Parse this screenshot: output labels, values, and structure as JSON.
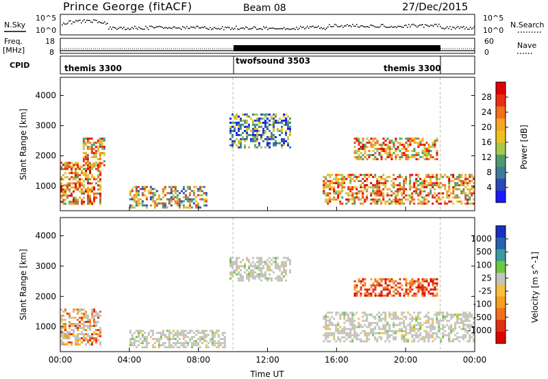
{
  "header": {
    "station": "Prince George (fitACF)",
    "beam": "Beam 08",
    "date": "27/Dec/2015"
  },
  "noise_panel": {
    "left_label": "N.Sky",
    "right_label": "N.Search",
    "left_ticks": [
      "10^5",
      "10^0"
    ],
    "right_ticks": [
      "10^5",
      "10^0"
    ],
    "right_legend_line": "dotted"
  },
  "freq_panel": {
    "label_line1": "Freq.",
    "label_line2": "[MHz]",
    "left_ticks": [
      "18",
      "8"
    ],
    "right_label": "Nave",
    "right_ticks": [
      "60",
      "0"
    ]
  },
  "cpid_panel": {
    "label": "CPID",
    "segments": [
      {
        "name": "themis 3300",
        "start_hour": 0,
        "end_hour": 10
      },
      {
        "name": "twofsound 3503",
        "start_hour": 10,
        "end_hour": 22
      },
      {
        "name": "themis 3300",
        "start_hour": 22,
        "end_hour": 24
      }
    ]
  },
  "chart_data": [
    {
      "type": "heatmap",
      "quantity": "power",
      "ylabel": "Slant Range [km]",
      "ylim": [
        180,
        4600
      ],
      "y_ticks": [
        1000,
        2000,
        3000,
        4000
      ],
      "colorbar": {
        "label": "Power [dB]",
        "ticks": [
          "4",
          "8",
          "12",
          "16",
          "20",
          "24",
          "28"
        ],
        "colors": [
          "#1a1aff",
          "#2a48b8",
          "#3f7a96",
          "#4f9a6e",
          "#a8c84a",
          "#f0c020",
          "#f5a623",
          "#f07018",
          "#e83010",
          "#e00000"
        ]
      },
      "echo_regions": [
        {
          "start_hour": 0.0,
          "end_hour": 2.3,
          "range_km": [
            400,
            1800
          ],
          "level": "strong"
        },
        {
          "start_hour": 1.3,
          "end_hour": 2.5,
          "range_km": [
            1700,
            2600
          ],
          "level": "strong"
        },
        {
          "start_hour": 4.0,
          "end_hour": 8.5,
          "range_km": [
            300,
            1000
          ],
          "level": "medium"
        },
        {
          "start_hour": 9.8,
          "end_hour": 13.3,
          "range_km": [
            2300,
            3400
          ],
          "level": "weak"
        },
        {
          "start_hour": 15.2,
          "end_hour": 24.0,
          "range_km": [
            400,
            1400
          ],
          "level": "strong"
        },
        {
          "start_hour": 17.0,
          "end_hour": 21.8,
          "range_km": [
            1900,
            2600
          ],
          "level": "strong"
        }
      ]
    },
    {
      "type": "heatmap",
      "quantity": "velocity",
      "ylabel": "Slant Range [km]",
      "xlabel": "Time UT",
      "ylim": [
        180,
        4600
      ],
      "y_ticks": [
        1000,
        2000,
        3000,
        4000
      ],
      "x_ticks": [
        "00:00",
        "04:00",
        "08:00",
        "12:00",
        "16:00",
        "20:00",
        "00:00"
      ],
      "colorbar": {
        "label": "Velocity [m s^-1]",
        "ticks": [
          "1000",
          "500",
          "100",
          "25",
          "-25",
          "-100",
          "-500",
          "-1000"
        ],
        "colors": [
          "#1a2fbf",
          "#2a60b0",
          "#3c9aa0",
          "#6cc840",
          "#c4c4bc",
          "#f5c040",
          "#f5a020",
          "#f07020",
          "#e03010",
          "#e00000"
        ]
      },
      "echo_regions": [
        {
          "start_hour": 0.0,
          "end_hour": 2.3,
          "range_km": [
            400,
            1600
          ],
          "class": "ground scatter and away"
        },
        {
          "start_hour": 4.0,
          "end_hour": 9.5,
          "range_km": [
            300,
            900
          ],
          "class": "ground scatter"
        },
        {
          "start_hour": 9.8,
          "end_hour": 13.3,
          "range_km": [
            2500,
            3300
          ],
          "class": "ground scatter"
        },
        {
          "start_hour": 15.2,
          "end_hour": 24.0,
          "range_km": [
            500,
            1500
          ],
          "class": "ground scatter"
        },
        {
          "start_hour": 17.0,
          "end_hour": 21.8,
          "range_km": [
            2000,
            2600
          ],
          "class": "away"
        }
      ]
    }
  ]
}
